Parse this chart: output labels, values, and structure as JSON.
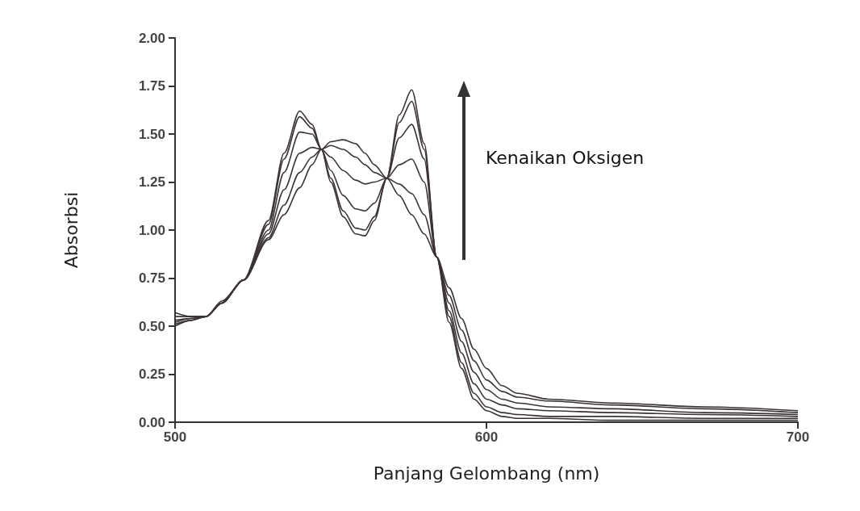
{
  "chart_data": {
    "type": "line",
    "xlabel": "Panjang Gelombang (nm)",
    "ylabel": "Absorbsi",
    "annotations": [
      "Kenaikan Oksigen"
    ],
    "x": [
      500,
      505,
      510,
      515,
      522,
      530,
      535,
      540,
      544,
      547,
      550,
      554,
      558,
      561,
      564,
      568,
      572,
      576,
      580,
      584,
      588,
      592,
      596,
      600,
      605,
      610,
      620,
      640,
      670,
      700
    ],
    "series": [
      {
        "color": "#3a3338",
        "values": [
          0.57,
          0.55,
          0.55,
          0.62,
          0.74,
          0.95,
          1.08,
          1.22,
          1.34,
          1.42,
          1.46,
          1.47,
          1.45,
          1.4,
          1.34,
          1.27,
          1.18,
          1.08,
          0.98,
          0.86,
          0.7,
          0.54,
          0.38,
          0.28,
          0.19,
          0.15,
          0.12,
          0.1,
          0.08,
          0.06
        ]
      },
      {
        "color": "#3a3338",
        "values": [
          0.55,
          0.55,
          0.55,
          0.62,
          0.74,
          0.96,
          1.13,
          1.3,
          1.38,
          1.42,
          1.44,
          1.42,
          1.38,
          1.34,
          1.3,
          1.27,
          1.24,
          1.19,
          1.08,
          0.86,
          0.66,
          0.48,
          0.32,
          0.22,
          0.16,
          0.13,
          0.11,
          0.09,
          0.07,
          0.05
        ]
      },
      {
        "color": "#3a3338",
        "values": [
          0.53,
          0.54,
          0.55,
          0.62,
          0.74,
          0.98,
          1.21,
          1.4,
          1.43,
          1.42,
          1.38,
          1.31,
          1.26,
          1.24,
          1.25,
          1.27,
          1.34,
          1.37,
          1.25,
          0.86,
          0.62,
          0.42,
          0.26,
          0.17,
          0.12,
          0.1,
          0.08,
          0.07,
          0.05,
          0.04
        ]
      },
      {
        "color": "#3a3338",
        "values": [
          0.52,
          0.54,
          0.55,
          0.62,
          0.74,
          1.0,
          1.3,
          1.51,
          1.5,
          1.42,
          1.31,
          1.18,
          1.11,
          1.1,
          1.14,
          1.27,
          1.48,
          1.55,
          1.37,
          0.86,
          0.58,
          0.36,
          0.2,
          0.12,
          0.09,
          0.07,
          0.06,
          0.05,
          0.04,
          0.03
        ]
      },
      {
        "color": "#3a3338",
        "values": [
          0.51,
          0.53,
          0.55,
          0.62,
          0.74,
          1.03,
          1.37,
          1.59,
          1.53,
          1.42,
          1.27,
          1.1,
          1.01,
          1.0,
          1.07,
          1.27,
          1.56,
          1.67,
          1.42,
          0.86,
          0.55,
          0.31,
          0.15,
          0.08,
          0.05,
          0.04,
          0.03,
          0.03,
          0.02,
          0.02
        ]
      },
      {
        "color": "#3a3338",
        "values": [
          0.5,
          0.53,
          0.55,
          0.63,
          0.74,
          1.05,
          1.4,
          1.62,
          1.55,
          1.42,
          1.25,
          1.07,
          0.98,
          0.97,
          1.05,
          1.27,
          1.6,
          1.73,
          1.45,
          0.86,
          0.52,
          0.28,
          0.12,
          0.06,
          0.03,
          0.02,
          0.02,
          0.01,
          0.01,
          0.01
        ]
      }
    ],
    "xlim": [
      500,
      700
    ],
    "xticks": [
      500,
      600,
      700
    ],
    "ylim": [
      0,
      2
    ],
    "yticks": [
      {
        "value": 0,
        "label": "0.00"
      },
      {
        "value": 0.25,
        "label": "0.25"
      },
      {
        "value": 0.5,
        "label": "0.50"
      },
      {
        "value": 0.75,
        "label": "0.75"
      },
      {
        "value": 1,
        "label": "1.00"
      },
      {
        "value": 1.25,
        "label": "1.25"
      },
      {
        "value": 1.5,
        "label": "1.50"
      },
      {
        "value": 1.75,
        "label": "1.75"
      },
      {
        "value": 2,
        "label": "2.00"
      }
    ],
    "grid": false,
    "marker": "none",
    "line_style": "solid"
  }
}
